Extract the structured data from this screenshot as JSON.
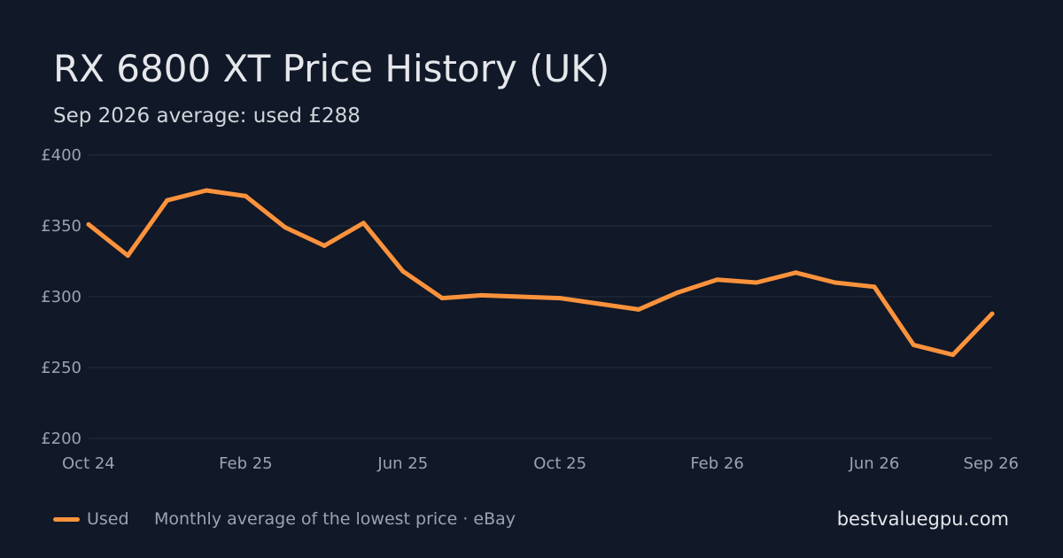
{
  "header": {
    "title": "RX 6800 XT Price History (UK)",
    "subtitle": "Sep 2026 average: used £288"
  },
  "colors": {
    "background": "#111827",
    "line": "#fb923c",
    "grid": "#1f2937",
    "tick_text": "#9ca3af"
  },
  "chart_data": {
    "type": "line",
    "title": "RX 6800 XT Price History (UK)",
    "subtitle": "Sep 2026 average: used £288",
    "xlabel": "",
    "ylabel": "",
    "ylim": [
      200,
      400
    ],
    "y_ticks": [
      200,
      250,
      300,
      350,
      400
    ],
    "y_tick_labels": [
      "£200",
      "£250",
      "£300",
      "£350",
      "£400"
    ],
    "x_tick_labels": [
      "Oct 24",
      "Feb 25",
      "Jun 25",
      "Oct 25",
      "Feb 26",
      "Jun 26",
      "Sep 26"
    ],
    "x_tick_indices": [
      0,
      4,
      8,
      12,
      16,
      20,
      23
    ],
    "x": [
      "2024-10",
      "2024-11",
      "2024-12",
      "2025-01",
      "2025-02",
      "2025-03",
      "2025-04",
      "2025-05",
      "2025-06",
      "2025-07",
      "2025-08",
      "2025-09",
      "2025-10",
      "2025-11",
      "2025-12",
      "2026-01",
      "2026-02",
      "2026-03",
      "2026-04",
      "2026-05",
      "2026-06",
      "2026-07",
      "2026-08",
      "2026-09"
    ],
    "series": [
      {
        "name": "Used",
        "values": [
          351,
          329,
          368,
          375,
          371,
          349,
          336,
          352,
          318,
          299,
          301,
          300,
          299,
          295,
          291,
          303,
          312,
          310,
          317,
          310,
          307,
          266,
          259,
          288
        ]
      }
    ],
    "grid": true,
    "legend": "bottom-left"
  },
  "footer": {
    "legend_label": "Used",
    "note": "Monthly average of the lowest price · eBay",
    "brand": "bestvaluegpu.com"
  }
}
